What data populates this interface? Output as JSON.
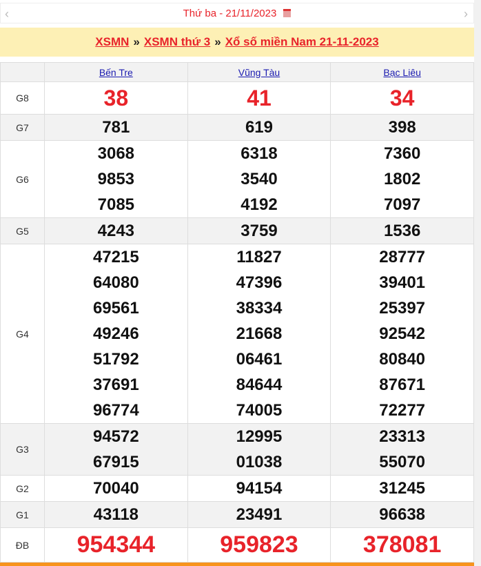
{
  "header": {
    "day": "Thứ ba - ",
    "date": "21/11/2023",
    "prev": "‹",
    "next": "›"
  },
  "breadcrumb": [
    "XSMN",
    "XSMN thứ 3",
    "Xổ số miền Nam 21-11-2023"
  ],
  "breadcrumb_sep": "»",
  "provinces": [
    "Bến Tre",
    "Vũng Tàu",
    "Bạc Liêu"
  ],
  "prizes": [
    {
      "label": "G8",
      "values": [
        [
          "38"
        ],
        [
          "41"
        ],
        [
          "34"
        ]
      ]
    },
    {
      "label": "G7",
      "values": [
        [
          "781"
        ],
        [
          "619"
        ],
        [
          "398"
        ]
      ]
    },
    {
      "label": "G6",
      "values": [
        [
          "3068",
          "9853",
          "7085"
        ],
        [
          "6318",
          "3540",
          "4192"
        ],
        [
          "7360",
          "1802",
          "7097"
        ]
      ]
    },
    {
      "label": "G5",
      "values": [
        [
          "4243"
        ],
        [
          "3759"
        ],
        [
          "1536"
        ]
      ]
    },
    {
      "label": "G4",
      "values": [
        [
          "47215",
          "64080",
          "69561",
          "49246",
          "51792",
          "37691",
          "96774"
        ],
        [
          "11827",
          "47396",
          "38334",
          "21668",
          "06461",
          "84644",
          "74005"
        ],
        [
          "28777",
          "39401",
          "25397",
          "92542",
          "80840",
          "87671",
          "72277"
        ]
      ]
    },
    {
      "label": "G3",
      "values": [
        [
          "94572",
          "67915"
        ],
        [
          "12995",
          "01038"
        ],
        [
          "23313",
          "55070"
        ]
      ]
    },
    {
      "label": "G2",
      "values": [
        [
          "70040"
        ],
        [
          "94154"
        ],
        [
          "31245"
        ]
      ]
    },
    {
      "label": "G1",
      "values": [
        [
          "43118"
        ],
        [
          "23491"
        ],
        [
          "96638"
        ]
      ]
    },
    {
      "label": "ĐB",
      "values": [
        [
          "954344"
        ],
        [
          "959823"
        ],
        [
          "378081"
        ]
      ]
    }
  ],
  "colors": {
    "accent": "#e8232a",
    "band": "#fdf0b5",
    "orange": "#f7941d"
  }
}
